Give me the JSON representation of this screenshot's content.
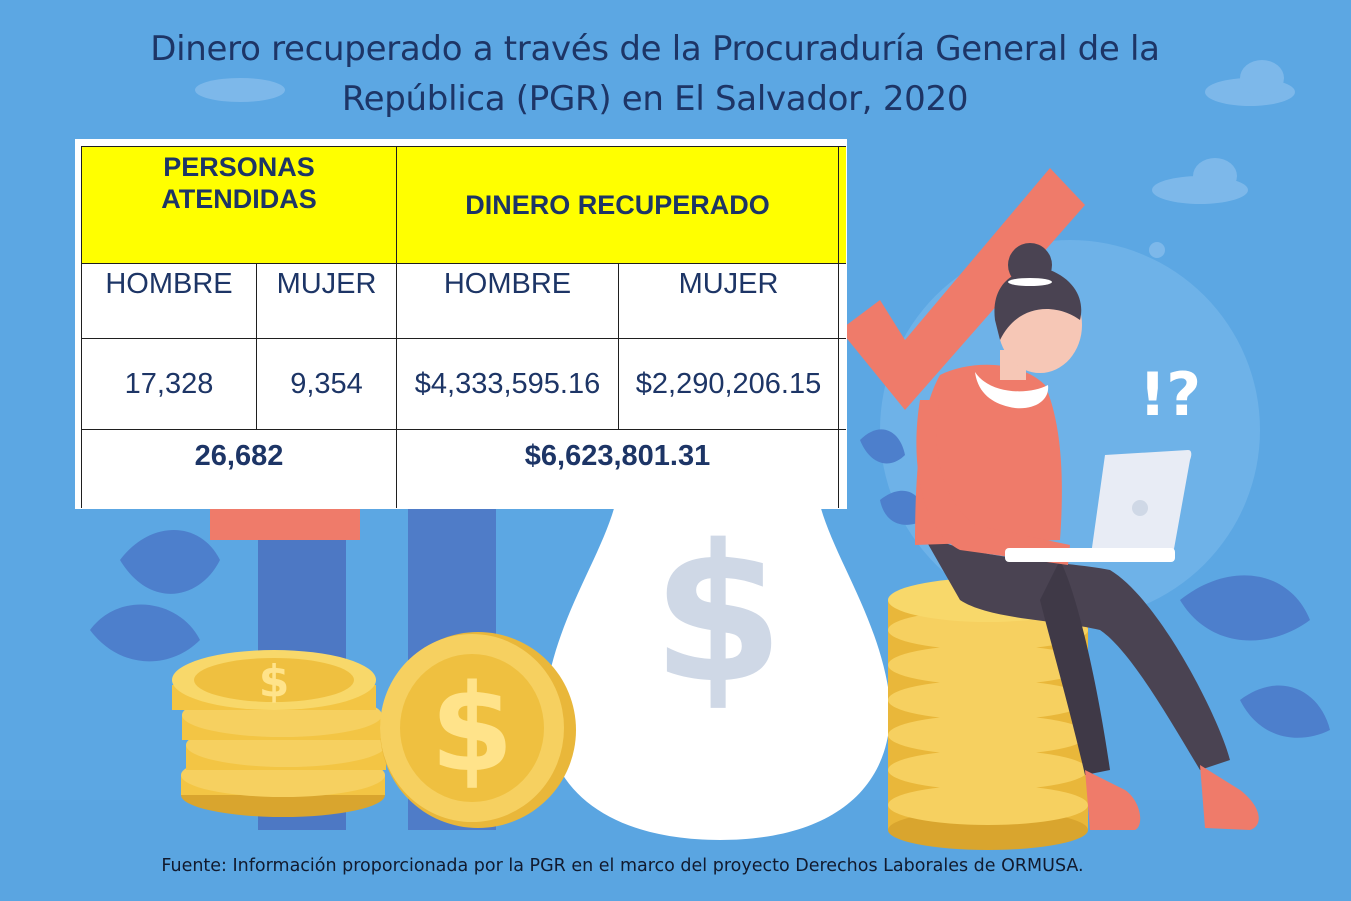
{
  "title": {
    "line1": "Dinero recuperado a través de la Procuraduría General de la",
    "line2": "República (PGR) en El Salvador, 2020"
  },
  "table": {
    "group_headers": {
      "persons_line1": "PERSONAS",
      "persons_line2": "ATENDIDAS",
      "money": "DINERO RECUPERADO"
    },
    "sub_headers": {
      "persons_men": "HOMBRE",
      "persons_women": "MUJER",
      "money_men": "HOMBRE",
      "money_women": "MUJER"
    },
    "values": {
      "persons_men": "17,328",
      "persons_women": "9,354",
      "money_men": "$4,333,595.16",
      "money_women": "$2,290,206.15"
    },
    "totals": {
      "persons": "26,682",
      "money": "$6,623,801.31"
    }
  },
  "illustration": {
    "dollar_sign": "$",
    "exclamation_question": "!?"
  },
  "colors": {
    "background": "#5ca7e3",
    "title_text": "#1d3566",
    "header_fill": "#ffff00",
    "coin_gold": "#f3c544",
    "arrow_red": "#ef7b6a"
  },
  "source": "Fuente: Información proporcionada por la PGR en el marco del proyecto Derechos Laborales de ORMUSA."
}
